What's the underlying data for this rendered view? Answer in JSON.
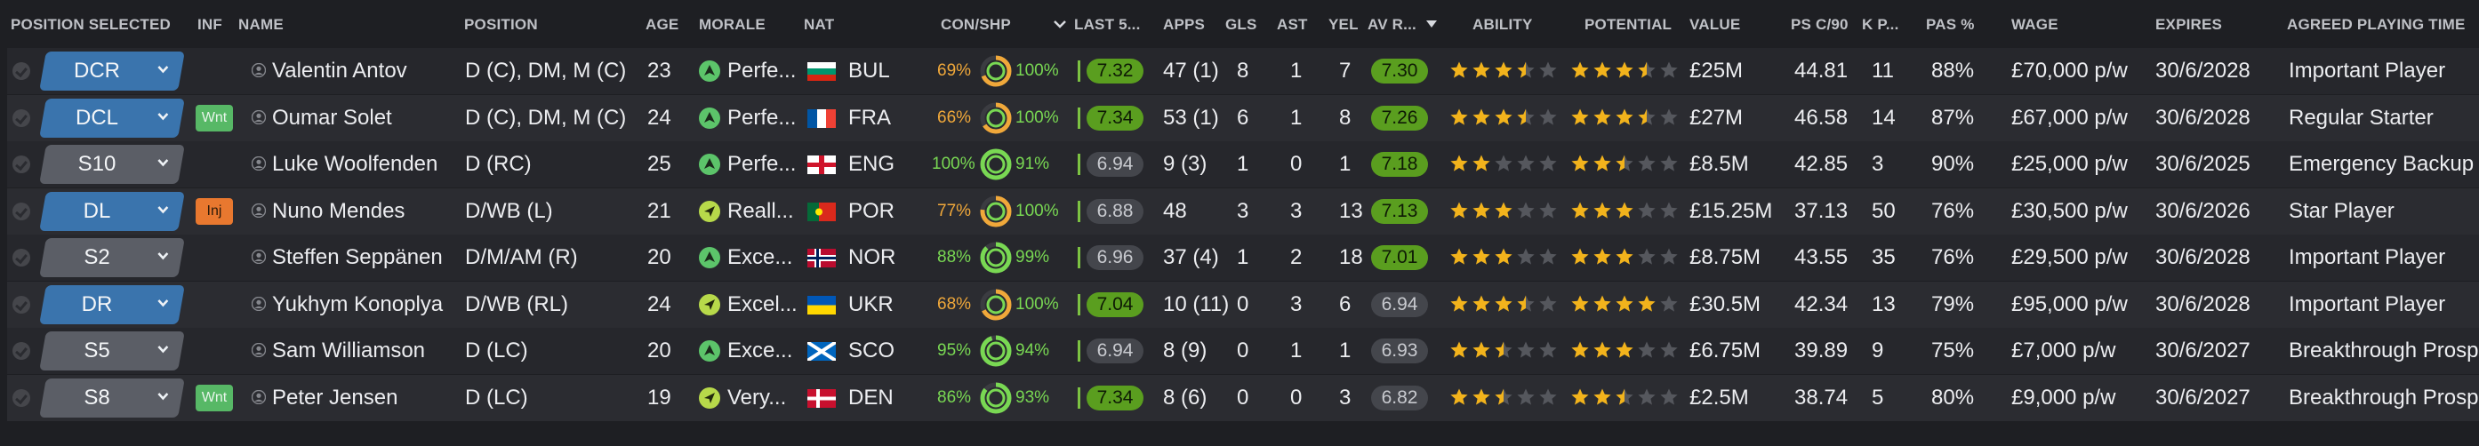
{
  "headers": {
    "position_selected": "POSITION SELECTED",
    "inf": "INF",
    "name": "NAME",
    "position": "POSITION",
    "age": "AGE",
    "morale": "MORALE",
    "nat": "NAT",
    "con_shp": "CON/SHP",
    "last5": "LAST 5...",
    "apps": "APPS",
    "gls": "GLS",
    "ast": "AST",
    "yel": "YEL",
    "av_rating": "AV R...",
    "ability": "ABILITY",
    "potential": "POTENTIAL",
    "value": "VALUE",
    "ps_c90": "PS C/90",
    "kp": "K P...",
    "pas_pct": "PAS %",
    "wage": "WAGE",
    "expires": "EXPIRES",
    "agreed_time": "AGREED PLAYING TIME"
  },
  "colors": {
    "con_green": "#79d853",
    "con_orange": "#f0a83a",
    "badge_green": "#5a9e1f",
    "badge_gray": "#44464c",
    "star": "#f2b31c",
    "star_empty": "#55575d"
  },
  "players": [
    {
      "pos_sel": "DCR",
      "pos_color": "blue",
      "inf": "",
      "name": "Valentin Antov",
      "position": "D (C), DM, M (C)",
      "age": "23",
      "morale": "Perfe...",
      "morale_icon": "up-arrow",
      "nat": "BUL",
      "flag": "bul",
      "con": "69%",
      "con_val": 0.69,
      "shp": "100%",
      "last5": "7.32",
      "last5_color": "green",
      "apps": "47 (1)",
      "gls": "8",
      "ast": "1",
      "yel": "7",
      "av": "7.30",
      "av_color": "green",
      "ability": 3.5,
      "potential": 3.5,
      "value": "£25M",
      "ps": "44.81",
      "kp": "11",
      "pas": "88%",
      "wage": "£70,000 p/w",
      "expires": "30/6/2028",
      "agreed": "Important Player"
    },
    {
      "pos_sel": "DCL",
      "pos_color": "blue",
      "inf": "Wnt",
      "name": "Oumar Solet",
      "position": "D (C), DM, M (C)",
      "age": "24",
      "morale": "Perfe...",
      "morale_icon": "up-arrow",
      "nat": "FRA",
      "flag": "fra",
      "con": "66%",
      "con_val": 0.66,
      "shp": "100%",
      "last5": "7.34",
      "last5_color": "green",
      "apps": "53 (1)",
      "gls": "6",
      "ast": "1",
      "yel": "8",
      "av": "7.26",
      "av_color": "green",
      "ability": 3.5,
      "potential": 3.5,
      "value": "£27M",
      "ps": "46.58",
      "kp": "14",
      "pas": "87%",
      "wage": "£67,000 p/w",
      "expires": "30/6/2028",
      "agreed": "Regular Starter"
    },
    {
      "pos_sel": "S10",
      "pos_color": "gray",
      "inf": "",
      "name": "Luke Woolfenden",
      "position": "D (RC)",
      "age": "25",
      "morale": "Perfe...",
      "morale_icon": "up-arrow",
      "nat": "ENG",
      "flag": "eng",
      "con": "100%",
      "con_val": 1.0,
      "shp": "91%",
      "last5": "6.94",
      "last5_color": "gray",
      "apps": "9 (3)",
      "gls": "1",
      "ast": "0",
      "yel": "1",
      "av": "7.18",
      "av_color": "green",
      "ability": 2,
      "potential": 2.5,
      "value": "£8.5M",
      "ps": "42.85",
      "kp": "3",
      "pas": "90%",
      "wage": "£25,000 p/w",
      "expires": "30/6/2025",
      "agreed": "Emergency Backup"
    },
    {
      "pos_sel": "DL",
      "pos_color": "blue",
      "inf": "Inj",
      "name": "Nuno Mendes",
      "position": "D/WB (L)",
      "age": "21",
      "morale": "Reall...",
      "morale_icon": "diag-arrow",
      "nat": "POR",
      "flag": "por",
      "con": "77%",
      "con_val": 0.77,
      "shp": "100%",
      "last5": "6.88",
      "last5_color": "gray",
      "apps": "48",
      "gls": "3",
      "ast": "3",
      "yel": "13",
      "av": "7.13",
      "av_color": "green",
      "ability": 3,
      "potential": 3,
      "value": "£15.25M",
      "ps": "37.13",
      "kp": "50",
      "pas": "76%",
      "wage": "£30,500 p/w",
      "expires": "30/6/2026",
      "agreed": "Star Player"
    },
    {
      "pos_sel": "S2",
      "pos_color": "gray",
      "inf": "",
      "name": "Steffen Seppänen",
      "position": "D/M/AM (R)",
      "age": "20",
      "morale": "Exce...",
      "morale_icon": "up-arrow",
      "nat": "NOR",
      "flag": "nor",
      "con": "88%",
      "con_val": 0.88,
      "shp": "99%",
      "last5": "6.96",
      "last5_color": "gray",
      "apps": "37 (4)",
      "gls": "1",
      "ast": "2",
      "yel": "18",
      "av": "7.01",
      "av_color": "green",
      "ability": 3,
      "potential": 3,
      "value": "£8.75M",
      "ps": "43.55",
      "kp": "35",
      "pas": "76%",
      "wage": "£29,500 p/w",
      "expires": "30/6/2028",
      "agreed": "Important Player"
    },
    {
      "pos_sel": "DR",
      "pos_color": "blue",
      "inf": "",
      "name": "Yukhym Konoplya",
      "position": "D/WB (RL)",
      "age": "24",
      "morale": "Excel...",
      "morale_icon": "diag-arrow",
      "nat": "UKR",
      "flag": "ukr",
      "con": "68%",
      "con_val": 0.68,
      "shp": "100%",
      "last5": "7.04",
      "last5_color": "green",
      "apps": "10 (11)",
      "gls": "0",
      "ast": "3",
      "yel": "6",
      "av": "6.94",
      "av_color": "gray",
      "ability": 3.5,
      "potential": 4,
      "value": "£30.5M",
      "ps": "42.34",
      "kp": "13",
      "pas": "79%",
      "wage": "£95,000 p/w",
      "expires": "30/6/2028",
      "agreed": "Important Player"
    },
    {
      "pos_sel": "S5",
      "pos_color": "gray",
      "inf": "",
      "name": "Sam Williamson",
      "position": "D (LC)",
      "age": "20",
      "morale": "Exce...",
      "morale_icon": "up-arrow",
      "nat": "SCO",
      "flag": "sco",
      "con": "95%",
      "con_val": 0.95,
      "shp": "94%",
      "last5": "6.94",
      "last5_color": "gray",
      "apps": "8 (9)",
      "gls": "0",
      "ast": "1",
      "yel": "1",
      "av": "6.93",
      "av_color": "gray",
      "ability": 2.5,
      "potential": 3,
      "value": "£6.75M",
      "ps": "39.89",
      "kp": "9",
      "pas": "75%",
      "wage": "£7,000 p/w",
      "expires": "30/6/2027",
      "agreed": "Breakthrough Prospect"
    },
    {
      "pos_sel": "S8",
      "pos_color": "gray",
      "inf": "Wnt",
      "name": "Peter Jensen",
      "position": "D (LC)",
      "age": "19",
      "morale": "Very...",
      "morale_icon": "diag-arrow",
      "nat": "DEN",
      "flag": "den",
      "con": "86%",
      "con_val": 0.86,
      "shp": "93%",
      "last5": "7.34",
      "last5_color": "green",
      "apps": "8 (6)",
      "gls": "0",
      "ast": "0",
      "yel": "3",
      "av": "6.82",
      "av_color": "gray",
      "ability": 2.5,
      "potential": 2.5,
      "value": "£2.5M",
      "ps": "38.74",
      "kp": "5",
      "pas": "80%",
      "wage": "£9,000 p/w",
      "expires": "30/6/2027",
      "agreed": "Breakthrough Prospect"
    }
  ]
}
